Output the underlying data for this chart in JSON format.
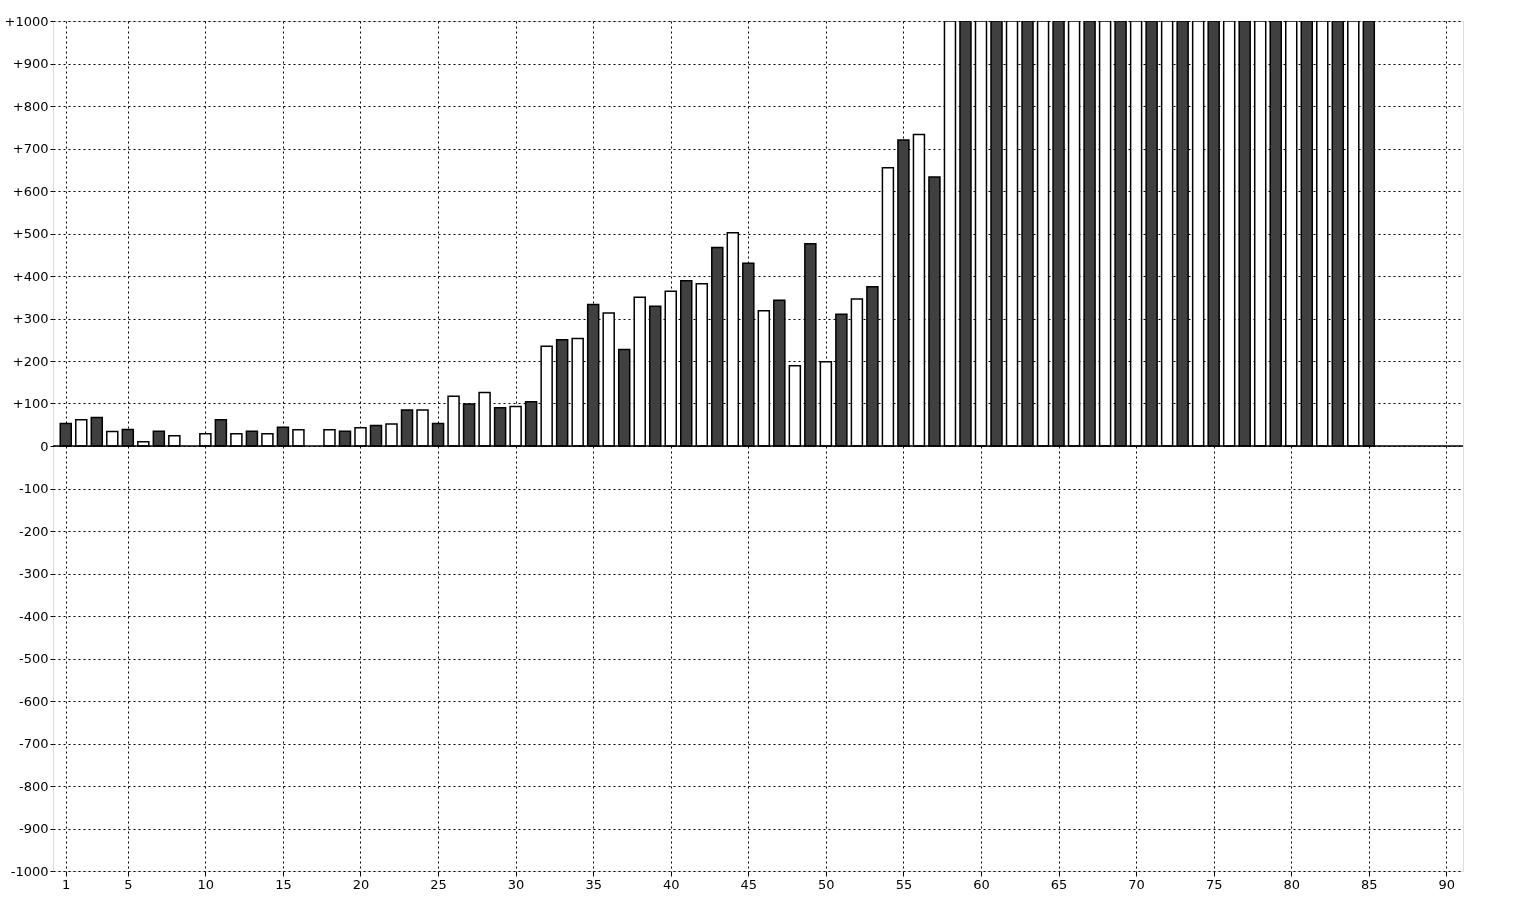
{
  "chart_data": {
    "type": "bar",
    "x": [
      1,
      2,
      3,
      4,
      5,
      6,
      7,
      8,
      9,
      10,
      11,
      12,
      13,
      14,
      15,
      16,
      17,
      18,
      19,
      20,
      21,
      22,
      23,
      24,
      25,
      26,
      27,
      28,
      29,
      30,
      31,
      32,
      33,
      34,
      35,
      36,
      37,
      38,
      39,
      40,
      41,
      42,
      43,
      44,
      45,
      46,
      47,
      48,
      49,
      50,
      51,
      52,
      53,
      54,
      55,
      56,
      57,
      58,
      59,
      60,
      61,
      62,
      63,
      64,
      65,
      66,
      67,
      68,
      69,
      70,
      71,
      72,
      73,
      74,
      75,
      76,
      77,
      78,
      79,
      80,
      81,
      82,
      83,
      84,
      85
    ],
    "values": [
      53,
      62,
      67,
      34,
      39,
      10,
      35,
      24,
      null,
      29,
      62,
      29,
      35,
      29,
      44,
      38,
      null,
      38,
      35,
      43,
      48,
      52,
      85,
      85,
      53,
      117,
      99,
      126,
      90,
      93,
      104,
      235,
      250,
      253,
      333,
      313,
      227,
      350,
      329,
      364,
      389,
      382,
      467,
      502,
      430,
      318,
      343,
      189,
      476,
      198,
      310,
      346,
      375,
      655,
      720,
      733,
      633,
      1000,
      1000,
      1000,
      1000,
      1000,
      1000,
      1000,
      1000,
      1000,
      1000,
      1000,
      1000,
      1000,
      1000,
      1000,
      1000,
      1000,
      1000,
      1000,
      1000,
      1000,
      1000,
      1000,
      1000,
      1000,
      1000,
      1000,
      1000
    ],
    "colors": [
      "#404040",
      "#ffffff",
      "#404040",
      "#ffffff",
      "#404040",
      "#ffffff",
      "#404040",
      "#ffffff",
      "#404040",
      "#ffffff",
      "#404040",
      "#ffffff",
      "#404040",
      "#ffffff",
      "#404040",
      "#ffffff",
      "#404040",
      "#ffffff",
      "#404040",
      "#ffffff",
      "#404040",
      "#ffffff",
      "#404040",
      "#ffffff",
      "#404040",
      "#ffffff",
      "#404040",
      "#ffffff",
      "#404040",
      "#ffffff",
      "#404040",
      "#ffffff",
      "#404040",
      "#ffffff",
      "#404040",
      "#ffffff",
      "#404040",
      "#ffffff",
      "#404040",
      "#ffffff",
      "#404040",
      "#ffffff",
      "#404040",
      "#ffffff",
      "#404040",
      "#ffffff",
      "#404040",
      "#ffffff",
      "#404040",
      "#ffffff",
      "#404040",
      "#ffffff",
      "#404040",
      "#ffffff",
      "#404040",
      "#ffffff",
      "#404040",
      "#ffffff",
      "#404040",
      "#ffffff",
      "#404040",
      "#ffffff",
      "#404040",
      "#ffffff",
      "#404040",
      "#ffffff",
      "#404040",
      "#ffffff",
      "#404040",
      "#ffffff",
      "#404040",
      "#ffffff",
      "#404040",
      "#ffffff",
      "#404040",
      "#ffffff",
      "#404040",
      "#ffffff",
      "#404040",
      "#ffffff",
      "#404040",
      "#ffffff",
      "#404040",
      "#ffffff",
      "#404040"
    ],
    "xlim": [
      0.5,
      90.75
    ],
    "xticks": [
      1,
      5,
      10,
      15,
      20,
      25,
      30,
      35,
      40,
      45,
      50,
      55,
      60,
      65,
      70,
      75,
      80,
      85,
      90
    ],
    "ylim": [
      -1000,
      1000
    ],
    "yticks": [
      {
        "value": -1000,
        "label": "-1000"
      },
      {
        "value": -900,
        "label": "-900"
      },
      {
        "value": -800,
        "label": "-800"
      },
      {
        "value": -700,
        "label": "-700"
      },
      {
        "value": -600,
        "label": "-600"
      },
      {
        "value": -500,
        "label": "-500"
      },
      {
        "value": -400,
        "label": "-400"
      },
      {
        "value": -300,
        "label": "-300"
      },
      {
        "value": -200,
        "label": "-200"
      },
      {
        "value": -100,
        "label": "-100"
      },
      0,
      {
        "value": 100,
        "label": "+100"
      },
      {
        "value": 200,
        "label": "+200"
      },
      {
        "value": 300,
        "label": "+300"
      },
      {
        "value": 400,
        "label": "+400"
      },
      {
        "value": 500,
        "label": "+500"
      },
      {
        "value": 600,
        "label": "+600"
      },
      {
        "value": 700,
        "label": "+700"
      },
      {
        "value": 800,
        "label": "+800"
      },
      {
        "value": 900,
        "label": "+900"
      },
      {
        "value": 1000,
        "label": "+1000"
      }
    ],
    "ref_lines": [
      {
        "axis": "y",
        "value": 0,
        "color": "#000000",
        "line_style": "solid"
      }
    ],
    "grid": true
  }
}
